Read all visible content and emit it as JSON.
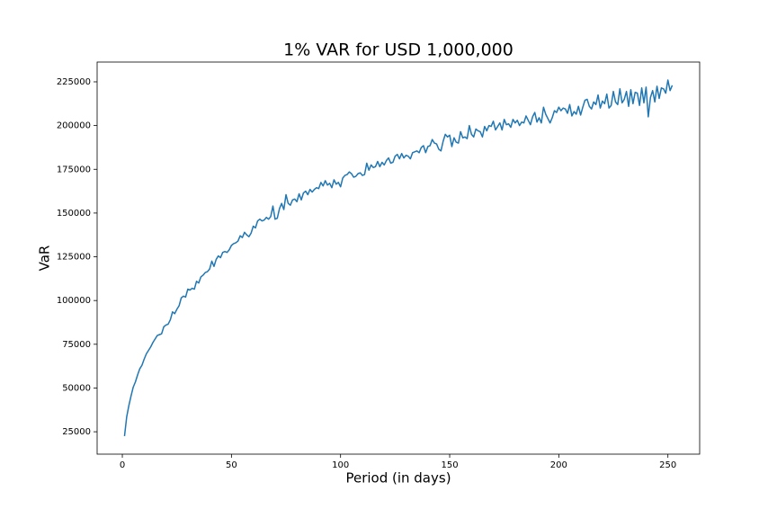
{
  "chart_data": {
    "type": "line",
    "title": "1% VAR for USD 1,000,000",
    "xlabel": "Period (in days)",
    "ylabel": "VaR",
    "x": [
      1,
      2,
      3,
      4,
      5,
      6,
      7,
      8,
      9,
      10,
      11,
      12,
      13,
      14,
      15,
      16,
      17,
      18,
      19,
      20,
      21,
      22,
      23,
      24,
      25,
      26,
      27,
      28,
      29,
      30,
      31,
      32,
      33,
      34,
      35,
      36,
      37,
      38,
      39,
      40,
      41,
      42,
      43,
      44,
      45,
      46,
      47,
      48,
      49,
      50,
      51,
      52,
      53,
      54,
      55,
      56,
      57,
      58,
      59,
      60,
      61,
      62,
      63,
      64,
      65,
      66,
      67,
      68,
      69,
      70,
      71,
      72,
      73,
      74,
      75,
      76,
      77,
      78,
      79,
      80,
      81,
      82,
      83,
      84,
      85,
      86,
      87,
      88,
      89,
      90,
      91,
      92,
      93,
      94,
      95,
      96,
      97,
      98,
      99,
      100,
      101,
      102,
      103,
      104,
      105,
      106,
      107,
      108,
      109,
      110,
      111,
      112,
      113,
      114,
      115,
      116,
      117,
      118,
      119,
      120,
      121,
      122,
      123,
      124,
      125,
      126,
      127,
      128,
      129,
      130,
      131,
      132,
      133,
      134,
      135,
      136,
      137,
      138,
      139,
      140,
      141,
      142,
      143,
      144,
      145,
      146,
      147,
      148,
      149,
      150,
      151,
      152,
      153,
      154,
      155,
      156,
      157,
      158,
      159,
      160,
      161,
      162,
      163,
      164,
      165,
      166,
      167,
      168,
      169,
      170,
      171,
      172,
      173,
      174,
      175,
      176,
      177,
      178,
      179,
      180,
      181,
      182,
      183,
      184,
      185,
      186,
      187,
      188,
      189,
      190,
      191,
      192,
      193,
      194,
      195,
      196,
      197,
      198,
      199,
      200,
      201,
      202,
      203,
      204,
      205,
      206,
      207,
      208,
      209,
      210,
      211,
      212,
      213,
      214,
      215,
      216,
      217,
      218,
      219,
      220,
      221,
      222,
      223,
      224,
      225,
      226,
      227,
      228,
      229,
      230,
      231,
      232,
      233,
      234,
      235,
      236,
      237,
      238,
      239,
      240,
      241,
      242,
      243,
      244,
      245,
      246,
      247,
      248,
      249,
      250,
      251,
      252
    ],
    "series": [
      {
        "color": "#1f77b4",
        "values": [
          22500,
          33500,
          40000,
          45500,
          50500,
          53500,
          57500,
          61000,
          63000,
          66500,
          69500,
          71500,
          73500,
          76000,
          78000,
          80000,
          80500,
          81000,
          85000,
          86000,
          86500,
          89000,
          93500,
          92500,
          95000,
          97000,
          101500,
          102500,
          102000,
          106500,
          106000,
          107000,
          106500,
          111000,
          110000,
          113500,
          114500,
          116000,
          116500,
          118000,
          122500,
          119500,
          123500,
          125500,
          124500,
          127500,
          128000,
          127500,
          129000,
          131500,
          132500,
          133000,
          134000,
          137000,
          136000,
          139000,
          137500,
          136500,
          138500,
          142500,
          141500,
          145500,
          146500,
          145500,
          146000,
          147500,
          146500,
          148000,
          154000,
          146500,
          147000,
          152500,
          155500,
          152000,
          160500,
          155500,
          154500,
          157500,
          158000,
          156500,
          161000,
          157500,
          161500,
          162500,
          160500,
          163500,
          162000,
          163500,
          164500,
          164000,
          167500,
          165500,
          168500,
          166000,
          167000,
          164500,
          169000,
          166500,
          167500,
          165000,
          170000,
          171500,
          172000,
          173500,
          172500,
          170500,
          171000,
          172500,
          173000,
          171500,
          172000,
          178500,
          174500,
          177500,
          176000,
          176500,
          179500,
          176500,
          179000,
          177500,
          180000,
          181500,
          178500,
          179000,
          182500,
          183500,
          181000,
          184000,
          181500,
          183000,
          182500,
          181000,
          184500,
          185000,
          185500,
          184500,
          187500,
          188500,
          184500,
          188000,
          188500,
          192000,
          190000,
          189500,
          186500,
          185500,
          191000,
          195000,
          193500,
          194500,
          188000,
          193000,
          190500,
          190000,
          196500,
          193000,
          193500,
          192500,
          200000,
          195000,
          193500,
          198000,
          197000,
          196500,
          193500,
          199500,
          197000,
          200000,
          199500,
          202500,
          197500,
          199500,
          201500,
          197500,
          203500,
          200500,
          201000,
          199000,
          203500,
          201500,
          203000,
          200000,
          202000,
          201500,
          205500,
          203000,
          200500,
          205000,
          207500,
          202000,
          204500,
          201500,
          210500,
          206500,
          204000,
          201500,
          204500,
          208500,
          207500,
          210500,
          208500,
          210000,
          209500,
          207000,
          212000,
          205500,
          208000,
          206500,
          211000,
          206000,
          210500,
          214500,
          215000,
          211000,
          209500,
          213500,
          212000,
          217500,
          210000,
          214000,
          212500,
          218000,
          210000,
          211500,
          219500,
          213500,
          212000,
          221000,
          213000,
          215000,
          219500,
          211000,
          220500,
          212500,
          219000,
          218500,
          211500,
          221500,
          213000,
          222000,
          205000,
          216000,
          220000,
          213500,
          222500,
          215500,
          221500,
          221000,
          218500,
          226000,
          220000,
          223000
        ]
      }
    ],
    "xlim": [
      -11.55,
      264.55
    ],
    "xticks": [
      0,
      50,
      100,
      150,
      200,
      250
    ],
    "ylim": [
      12200,
      236300
    ],
    "yticks": [
      25000,
      50000,
      75000,
      100000,
      125000,
      150000,
      175000,
      200000,
      225000
    ]
  }
}
